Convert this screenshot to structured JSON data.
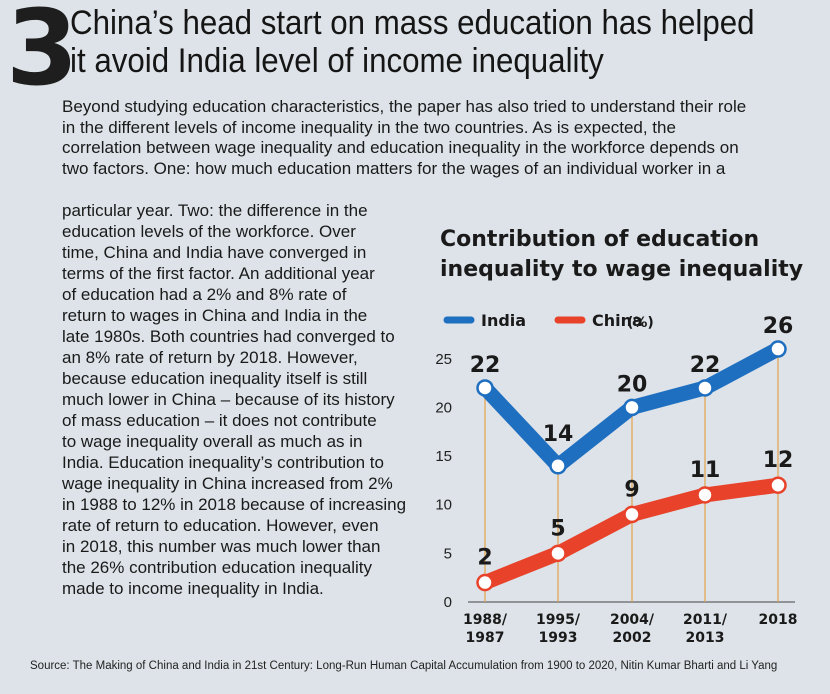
{
  "figure": {
    "number": "3",
    "headline": [
      "China’s head start on mass education has helped",
      "it avoid India level of income inequality"
    ],
    "intro_lines": [
      "Beyond studying education characteristics, the paper has also tried to understand their role",
      "in the different levels of income inequality in the two countries. As is expected, the",
      "correlation between wage inequality and education inequality in the workforce depends on",
      "two factors. One: how much education matters for the wages of an individual worker in a"
    ],
    "body_lines": [
      "particular year. Two: the difference in the",
      "education levels of the workforce. Over",
      "time, China and India have converged in",
      "terms of the first factor. An additional year",
      "of education had a 2% and 8% rate of",
      "return to wages in China and India in the",
      "late 1980s. Both countries had converged to",
      "an 8% rate of return by 2018. However,",
      "because education inequality itself is still",
      "much lower in China – because of its history",
      "of mass education – it does not contribute",
      "to wage inequality overall as much as in",
      "India. Education inequality’s contribution to",
      "wage inequality in China increased from 2%",
      "in 1988 to 12% in 2018 because of increasing",
      "rate of return to education. However, even",
      "in 2018, this number was much lower than",
      "the 26% contribution education inequality",
      "made to income inequality in India."
    ],
    "source": "Source: The Making of China and India in 21st Century: Long-Run Human Capital Accumulation from 1900 to 2020,  Nitin Kumar Bharti and Li Yang"
  },
  "chart_data": {
    "type": "line",
    "title": [
      "Contribution of education",
      "inequality to wage inequality"
    ],
    "unit": "(%)",
    "categories": [
      [
        "1988/",
        "1987"
      ],
      [
        "1995/",
        "1993"
      ],
      [
        "2004/",
        "2002"
      ],
      [
        "2011/",
        "2013"
      ],
      [
        "2018"
      ]
    ],
    "series": [
      {
        "name": "India",
        "color": "#1f6fc1",
        "values": [
          22,
          14,
          20,
          22,
          26
        ]
      },
      {
        "name": "China",
        "color": "#e8432a",
        "values": [
          2,
          5,
          9,
          11,
          12
        ]
      }
    ],
    "ylim": [
      0,
      26
    ],
    "yticks": [
      0,
      5,
      10,
      15,
      20,
      25
    ],
    "legend": "top-left",
    "grid": false
  }
}
